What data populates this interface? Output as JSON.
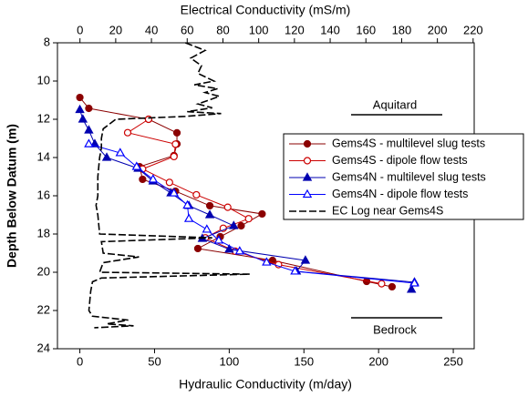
{
  "chart_data": {
    "type": "scatter",
    "x_label": "Hydraulic Conductivity (m/day)",
    "x2_label": "Electrical Conductivity (mS/m)",
    "y_label": "Depth Below Datum (m)",
    "xlim": [
      -15,
      264
    ],
    "xticks": [
      0,
      50,
      100,
      150,
      200,
      250
    ],
    "x2lim": [
      -12.6,
      220.6
    ],
    "x2ticks": [
      0,
      20,
      40,
      60,
      80,
      100,
      120,
      140,
      160,
      180,
      200,
      220
    ],
    "ylim": [
      24,
      8
    ],
    "yticks": [
      8,
      10,
      12,
      14,
      16,
      18,
      20,
      22,
      24
    ],
    "legend": "right",
    "annotations": [
      "Aquitard",
      "Bedrock"
    ],
    "series": [
      {
        "name": "Gems4S - multilevel slug tests",
        "color": "#8b0000",
        "marker": "circle",
        "filled": true,
        "x": [
          0,
          6,
          46,
          65,
          65,
          63,
          40,
          42,
          64,
          87,
          122,
          108,
          94,
          79,
          129,
          192,
          209
        ],
        "y": [
          10.86,
          11.43,
          12.0,
          12.71,
          13.29,
          13.9,
          14.48,
          15.14,
          15.76,
          16.52,
          16.95,
          17.57,
          18.14,
          18.76,
          19.38,
          20.48,
          20.76
        ]
      },
      {
        "name": "Gems4S - dipole flow tests",
        "color": "#cc0000",
        "marker": "circle",
        "filled": false,
        "x": [
          46,
          32,
          64,
          63,
          42,
          60,
          78,
          99,
          113,
          96,
          84,
          104,
          133,
          202
        ],
        "y": [
          12.0,
          12.7,
          13.3,
          13.95,
          14.6,
          15.3,
          15.95,
          16.6,
          17.2,
          17.7,
          18.2,
          18.9,
          19.6,
          20.6
        ]
      },
      {
        "name": "Gems4N - multilevel slug tests",
        "color": "#0000b0",
        "marker": "triangle",
        "filled": true,
        "x": [
          0,
          2,
          6,
          10,
          18,
          39,
          49,
          61,
          73,
          87,
          103,
          82,
          100,
          151,
          145,
          224,
          222
        ],
        "y": [
          11.5,
          12.0,
          12.57,
          13.29,
          14.0,
          14.57,
          15.24,
          15.86,
          16.52,
          17.0,
          17.57,
          18.24,
          18.8,
          19.38,
          19.95,
          20.52,
          20.9
        ]
      },
      {
        "name": "Gems4N - dipole flow tests",
        "color": "#0000ff",
        "marker": "triangle",
        "filled": false,
        "x": [
          6,
          27,
          38,
          49,
          63,
          72,
          73,
          85,
          93,
          107,
          125,
          144,
          224
        ],
        "y": [
          13.29,
          13.76,
          14.48,
          15.14,
          15.86,
          16.5,
          17.2,
          17.76,
          18.33,
          18.9,
          19.48,
          19.95,
          20.57
        ]
      },
      {
        "name": "EC Log near Gems4S",
        "color": "#000000",
        "marker": "none",
        "dashed": true,
        "axis": "x2",
        "x": [
          59,
          70,
          62,
          68,
          66,
          75,
          64,
          77,
          70,
          78,
          72,
          66,
          74,
          60,
          79,
          59,
          20,
          13,
          12,
          12,
          11,
          10,
          10,
          9,
          10,
          11,
          74,
          12,
          13,
          33,
          13,
          11,
          95,
          12,
          7,
          6,
          5,
          7,
          27,
          15,
          30,
          8
        ],
        "y": [
          8.0,
          8.4,
          8.8,
          9.2,
          9.6,
          10.0,
          10.2,
          10.4,
          10.6,
          10.8,
          11.0,
          11.2,
          11.4,
          11.6,
          11.7,
          11.85,
          12.0,
          12.5,
          13.0,
          13.5,
          14.0,
          15.0,
          16.0,
          16.5,
          17.0,
          18.0,
          18.2,
          18.4,
          19.0,
          19.2,
          19.5,
          20.0,
          20.1,
          20.3,
          20.5,
          21.0,
          22.0,
          22.3,
          22.5,
          22.7,
          22.8,
          22.9
        ]
      }
    ]
  }
}
